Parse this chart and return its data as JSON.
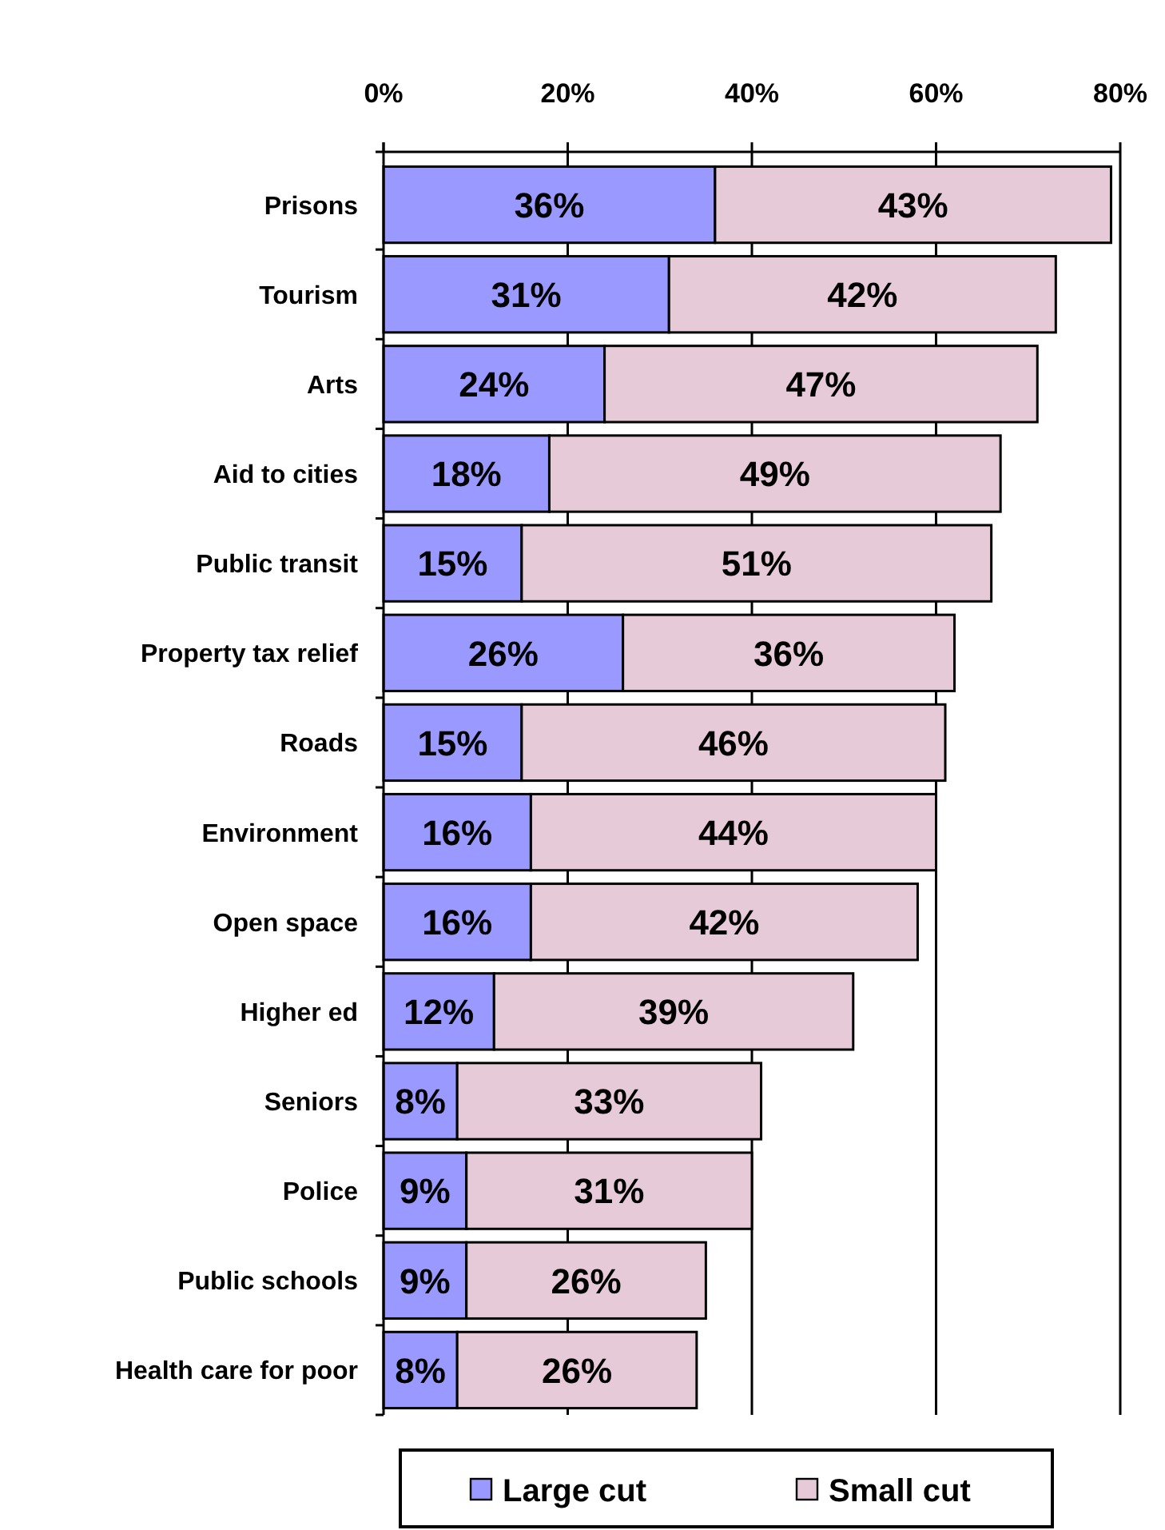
{
  "chart_data": {
    "type": "bar",
    "orientation": "horizontal",
    "stacked": true,
    "categories": [
      "Prisons",
      "Tourism",
      "Arts",
      "Aid to cities",
      "Public transit",
      "Property tax relief",
      "Roads",
      "Environment",
      "Open space",
      "Higher ed",
      "Seniors",
      "Police",
      "Public schools",
      "Health care for poor"
    ],
    "series": [
      {
        "name": "Large cut",
        "color": "#9999ff",
        "values": [
          36,
          31,
          24,
          18,
          15,
          26,
          15,
          16,
          16,
          12,
          8,
          9,
          9,
          8
        ],
        "value_labels": [
          "36%",
          "31%",
          "24%",
          "18%",
          "15%",
          "26%",
          "15%",
          "16%",
          "16%",
          "12%",
          "8%",
          "9%",
          "9%",
          "8%"
        ]
      },
      {
        "name": "Small cut",
        "color": "#e6cad8",
        "values": [
          43,
          42,
          47,
          49,
          51,
          36,
          46,
          44,
          42,
          39,
          33,
          31,
          26,
          26
        ],
        "value_labels": [
          "43%",
          "42%",
          "47%",
          "49%",
          "51%",
          "36%",
          "46%",
          "44%",
          "42%",
          "39%",
          "33%",
          "31%",
          "26%",
          "26%"
        ]
      }
    ],
    "xlim": [
      0,
      80
    ],
    "xticks": [
      {
        "value": 0,
        "label": "0%"
      },
      {
        "value": 20,
        "label": "20%"
      },
      {
        "value": 40,
        "label": "40%"
      },
      {
        "value": 60,
        "label": "60%"
      },
      {
        "value": 80,
        "label": "80%"
      }
    ],
    "grid": "x",
    "legend": "bottom"
  }
}
